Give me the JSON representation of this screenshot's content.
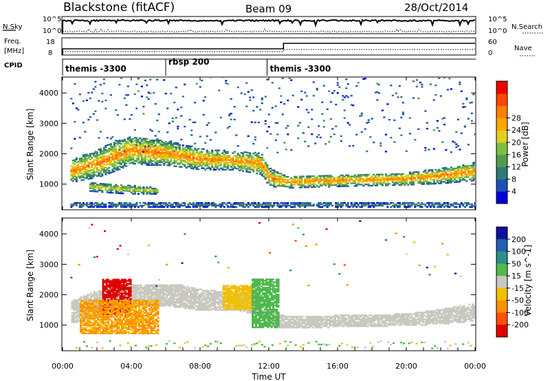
{
  "header": {
    "station": "Blackstone (fitACF)",
    "beam": "Beam 09",
    "date": "28/Oct/2014"
  },
  "panels": {
    "nsky_label": "N.Sky",
    "nsearch_label": "N.Search",
    "nsky_ticks": [
      "10^5",
      "10^0"
    ],
    "nsearch_ticks": [
      "10^5",
      "10^0"
    ],
    "freq_label": "Freq.",
    "freq_unit": "[MHz]",
    "freq_ticks": [
      "18",
      "8"
    ],
    "nave_label": "Nave",
    "nave_ticks": [
      "60",
      "0"
    ],
    "cpid_label": "CPID",
    "cpid_segments": [
      {
        "label": "themis -3300",
        "start_hour": 0
      },
      {
        "label": "rbsp 200",
        "start_hour": 6
      },
      {
        "label": "themis -3300",
        "start_hour": 11.9
      }
    ]
  },
  "axes": {
    "ylabel": "Slant Range [km]",
    "xlabel": "Time UT",
    "y_ticks": [
      1000,
      2000,
      3000,
      4000
    ],
    "x_ticks": [
      "00:00",
      "04:00",
      "08:00",
      "12:00",
      "16:00",
      "20:00",
      "00:00"
    ]
  },
  "colorbars": {
    "power": {
      "label": "Power [dB]",
      "ticks": [
        "4",
        "8",
        "12",
        "16",
        "20",
        "24",
        "28"
      ],
      "colors": [
        "#0000dd",
        "#1e4fb8",
        "#2f7a73",
        "#4f9a4f",
        "#7fbf3f",
        "#dfd020",
        "#ffa500",
        "#ff7f00",
        "#ff4500",
        "#ee0000"
      ]
    },
    "velocity": {
      "label": "Velocity [m s^-1]",
      "ticks": [
        "200",
        "100",
        "50",
        "15",
        "-15",
        "-50",
        "-100",
        "-200"
      ],
      "colors": [
        "#1010a0",
        "#2060b0",
        "#2a8f8a",
        "#4fb84f",
        "#c8c8c0",
        "#f0c000",
        "#ff9000",
        "#ff5000",
        "#e00000"
      ]
    }
  },
  "chart_data": [
    {
      "type": "heatmap",
      "title": "Power",
      "xlabel": "Time UT",
      "ylabel": "Slant Range [km]",
      "xlim": [
        0,
        24
      ],
      "ylim": [
        180,
        4500
      ],
      "zlim": [
        0,
        32
      ],
      "z_label": "Power [dB]",
      "backscatter_bands": [
        {
          "x": [
            0,
            1,
            2,
            3,
            4,
            5,
            6,
            8,
            10,
            11.5,
            12,
            13,
            16,
            20,
            22,
            24
          ],
          "range_center": [
            1300,
            1500,
            1650,
            1900,
            2100,
            2050,
            2000,
            1800,
            1750,
            1650,
            1200,
            1050,
            1100,
            1150,
            1250,
            1400
          ],
          "half_width": [
            350,
            400,
            450,
            500,
            450,
            450,
            400,
            350,
            300,
            350,
            300,
            200,
            200,
            200,
            250,
            300
          ],
          "peak_db": 24
        },
        {
          "x": [
            1.5,
            2.5,
            4,
            5.5
          ],
          "range_center": [
            900,
            850,
            800,
            750
          ],
          "half_width": [
            150,
            150,
            150,
            100
          ],
          "peak_db": 18
        },
        {
          "x": [
            0,
            12,
            24
          ],
          "range_center": [
            300,
            300,
            300
          ],
          "half_width": [
            80,
            80,
            80
          ],
          "peak_db": 10
        }
      ]
    },
    {
      "type": "heatmap",
      "title": "Velocity",
      "xlabel": "Time UT",
      "ylabel": "Slant Range [km]",
      "xlim": [
        0,
        24
      ],
      "ylim": [
        180,
        4500
      ],
      "zlim": [
        -200,
        200
      ],
      "z_label": "Velocity [m s^-1]",
      "regions": [
        {
          "x": [
            0.5,
            24
          ],
          "range": [
            800,
            2300
          ],
          "velocity": 0
        },
        {
          "x": [
            2.3,
            4.0
          ],
          "range": [
            1300,
            2500
          ],
          "velocity": -200
        },
        {
          "x": [
            1.0,
            5.5
          ],
          "range": [
            700,
            1800
          ],
          "velocity": -80
        },
        {
          "x": [
            9.3,
            11.0
          ],
          "range": [
            1500,
            2300
          ],
          "velocity": -60
        },
        {
          "x": [
            11.0,
            12.5
          ],
          "range": [
            900,
            2500
          ],
          "velocity": 40
        }
      ]
    }
  ]
}
